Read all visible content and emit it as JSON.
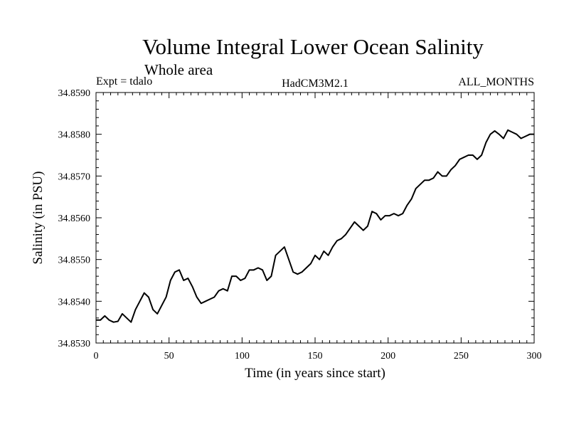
{
  "chart_data": {
    "type": "line",
    "title": "Volume Integral Lower Ocean Salinity",
    "subtitle": "Whole area",
    "experiment": "Expt = tdalo",
    "model": "HadCM3M2.1",
    "period": "ALL_MONTHS",
    "xlabel": "Time (in years since start)",
    "ylabel": "Salinity (in PSU)",
    "xlim": [
      0,
      300
    ],
    "ylim": [
      34.853,
      34.859
    ],
    "xticks": [
      0,
      50,
      100,
      150,
      200,
      250,
      300
    ],
    "xtick_labels": [
      "0",
      "50",
      "100",
      "150",
      "200",
      "250",
      "300"
    ],
    "yticks": [
      34.853,
      34.854,
      34.855,
      34.856,
      34.857,
      34.858,
      34.859
    ],
    "ytick_labels": [
      "34.8530",
      "34.8540",
      "34.8550",
      "34.8560",
      "34.8570",
      "34.8580",
      "34.8590"
    ],
    "grid": false,
    "series": [
      {
        "name": "Salinity",
        "x": [
          0,
          3,
          6,
          9,
          12,
          15,
          18,
          21,
          24,
          27,
          30,
          33,
          36,
          39,
          42,
          45,
          48,
          51,
          54,
          57,
          60,
          63,
          66,
          69,
          72,
          75,
          78,
          81,
          84,
          87,
          90,
          93,
          96,
          99,
          102,
          105,
          108,
          111,
          114,
          117,
          120,
          123,
          126,
          129,
          132,
          135,
          138,
          141,
          144,
          147,
          150,
          153,
          156,
          159,
          162,
          165,
          168,
          171,
          174,
          177,
          180,
          183,
          186,
          189,
          192,
          195,
          198,
          201,
          204,
          207,
          210,
          213,
          216,
          219,
          222,
          225,
          228,
          231,
          234,
          237,
          240,
          243,
          246,
          249,
          252,
          255,
          258,
          261,
          264,
          267,
          270,
          273,
          276,
          279,
          282,
          285,
          288,
          291,
          294,
          297,
          300
        ],
        "values": [
          34.85355,
          34.85355,
          34.85365,
          34.85355,
          34.8535,
          34.85352,
          34.8537,
          34.8536,
          34.8535,
          34.8538,
          34.854,
          34.8542,
          34.8541,
          34.8538,
          34.8537,
          34.8539,
          34.8541,
          34.8545,
          34.8547,
          34.85475,
          34.8545,
          34.85455,
          34.85435,
          34.8541,
          34.85395,
          34.854,
          34.85405,
          34.8541,
          34.85425,
          34.8543,
          34.85425,
          34.8546,
          34.8546,
          34.8545,
          34.85455,
          34.85475,
          34.85475,
          34.8548,
          34.85475,
          34.8545,
          34.8546,
          34.8551,
          34.8552,
          34.8553,
          34.855,
          34.8547,
          34.85465,
          34.8547,
          34.8548,
          34.8549,
          34.8551,
          34.855,
          34.8552,
          34.8551,
          34.8553,
          34.85545,
          34.8555,
          34.8556,
          34.85575,
          34.8559,
          34.8558,
          34.8557,
          34.8558,
          34.85615,
          34.8561,
          34.85595,
          34.85605,
          34.85605,
          34.8561,
          34.85605,
          34.8561,
          34.8563,
          34.85645,
          34.8567,
          34.8568,
          34.8569,
          34.8569,
          34.85695,
          34.8571,
          34.857,
          34.857,
          34.85715,
          34.85725,
          34.8574,
          34.85745,
          34.8575,
          34.8575,
          34.8574,
          34.8575,
          34.8578,
          34.858,
          34.85808,
          34.858,
          34.8579,
          34.8581,
          34.85805,
          34.858,
          34.8579,
          34.85795,
          34.858,
          34.858
        ]
      }
    ]
  }
}
